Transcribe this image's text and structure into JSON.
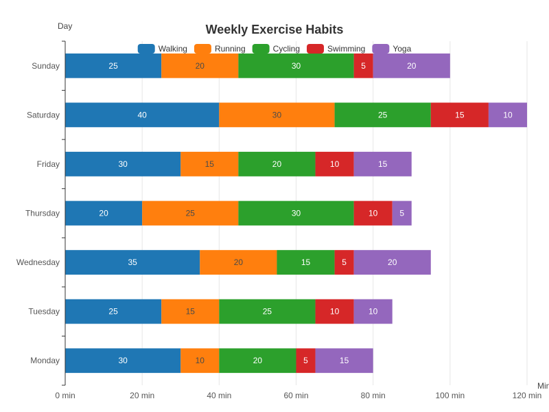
{
  "chart_data": {
    "type": "bar",
    "orientation": "horizontal",
    "stacked": true,
    "title": "Weekly Exercise Habits",
    "ylabel": "Day",
    "xlabel": "Min",
    "x_tick_format": "{v} min",
    "xlim": [
      0,
      120
    ],
    "x_ticks": [
      0,
      20,
      40,
      60,
      80,
      100,
      120
    ],
    "grid": true,
    "legend_position": "top",
    "categories": [
      "Monday",
      "Tuesday",
      "Wednesday",
      "Thursday",
      "Friday",
      "Saturday",
      "Sunday"
    ],
    "series": [
      {
        "name": "Walking",
        "color": "#1f77b4",
        "values": [
          30,
          25,
          35,
          20,
          30,
          40,
          25
        ]
      },
      {
        "name": "Running",
        "color": "#ff7f0e",
        "values": [
          10,
          15,
          20,
          25,
          15,
          30,
          20
        ]
      },
      {
        "name": "Cycling",
        "color": "#2ca02c",
        "values": [
          20,
          25,
          15,
          30,
          20,
          25,
          30
        ]
      },
      {
        "name": "Swimming",
        "color": "#d62728",
        "values": [
          5,
          10,
          5,
          10,
          10,
          15,
          5
        ]
      },
      {
        "name": "Yoga",
        "color": "#9467bd",
        "values": [
          15,
          10,
          20,
          5,
          15,
          10,
          20
        ]
      }
    ]
  }
}
